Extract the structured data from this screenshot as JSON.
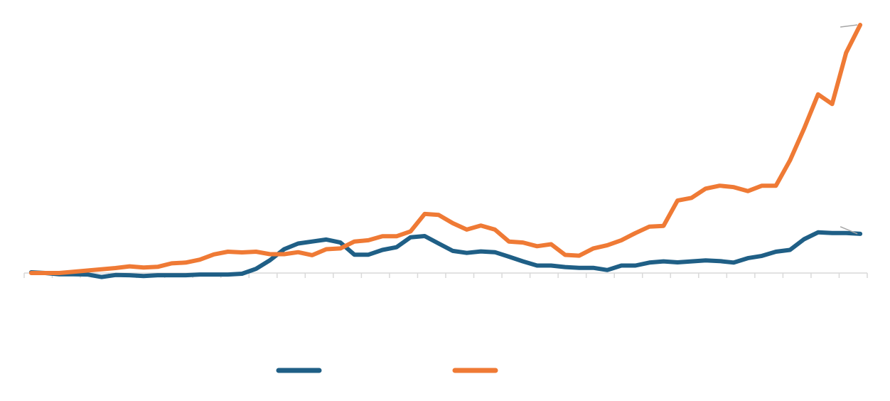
{
  "chart_data": {
    "type": "line",
    "title": "",
    "xlabel": "",
    "ylabel": "",
    "grid": false,
    "legend_position": "bottom",
    "x": [
      1,
      2,
      3,
      4,
      5,
      6,
      7,
      8,
      9,
      10,
      11,
      12,
      13,
      14,
      15,
      16,
      17,
      18,
      19,
      20,
      21,
      22,
      23,
      24,
      25,
      26,
      27,
      28,
      29,
      30,
      31,
      32,
      33,
      34,
      35,
      36,
      37,
      38,
      39,
      40,
      41,
      42,
      43,
      44,
      45,
      46,
      47,
      48,
      49,
      50,
      51,
      52,
      53,
      54,
      55,
      56,
      57,
      58,
      59,
      60
    ],
    "xlim": [
      0.5,
      60.5
    ],
    "ylim": [
      0,
      100
    ],
    "series": [
      {
        "name": "",
        "color": "#1f5f86",
        "values": [
          0.3,
          0,
          -0.5,
          -0.5,
          -0.6,
          -1.6,
          -0.8,
          -0.9,
          -1.2,
          -0.9,
          -0.9,
          -0.9,
          -0.6,
          -0.6,
          -0.6,
          -0.3,
          1.7,
          5.2,
          9.6,
          11.9,
          12.7,
          13.5,
          12.3,
          7.4,
          7.4,
          9.3,
          10.4,
          14.4,
          14.9,
          11.9,
          8.9,
          8.1,
          8.7,
          8.4,
          6.6,
          4.7,
          3.0,
          3.0,
          2.4,
          2.1,
          2.1,
          1.2,
          3.0,
          3.0,
          4.2,
          4.7,
          4.3,
          4.7,
          5.1,
          4.8,
          4.2,
          6.0,
          6.9,
          8.6,
          9.3,
          13.6,
          16.4,
          16.1,
          16.1,
          15.8
        ]
      },
      {
        "name": "",
        "color": "#ef7a35",
        "values": [
          0,
          0,
          0,
          0.5,
          1.0,
          1.5,
          2.0,
          2.7,
          2.2,
          2.5,
          3.9,
          4.2,
          5.4,
          7.5,
          8.6,
          8.3,
          8.6,
          7.6,
          7.6,
          8.4,
          7.2,
          9.6,
          9.9,
          12.7,
          13.2,
          14.8,
          14.8,
          16.8,
          23.8,
          23.4,
          20.1,
          17.5,
          19.1,
          17.5,
          12.7,
          12.3,
          10.8,
          11.6,
          7.3,
          7.0,
          9.9,
          11.2,
          13.2,
          16.1,
          18.7,
          19.0,
          29.2,
          30.3,
          34.0,
          35.2,
          34.6,
          33.0,
          35.2,
          35.2,
          45.4,
          58.1,
          72.0,
          68.1,
          88.8,
          100
        ]
      }
    ]
  }
}
